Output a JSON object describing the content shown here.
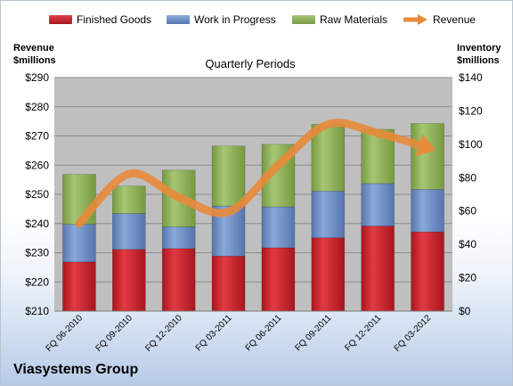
{
  "chart_data": {
    "type": "bar",
    "stacked": true,
    "title": "Quarterly Periods",
    "categories": [
      "FQ 06-2010",
      "FQ 09-2010",
      "FQ 12-2010",
      "FQ 03-2011",
      "FQ 06-2011",
      "FQ 09-2011",
      "FQ 12-2011",
      "FQ 03-2012"
    ],
    "series": [
      {
        "name": "Finished Goods",
        "axis": "right",
        "color": "#c0202a",
        "values": [
          29.5,
          37,
          37.5,
          33,
          38,
          44,
          51,
          47.5
        ]
      },
      {
        "name": "Work in Progress",
        "axis": "right",
        "color": "#6e8fc6",
        "values": [
          22.5,
          21.5,
          13,
          30,
          24.5,
          28,
          25.5,
          25.5
        ]
      },
      {
        "name": "Raw Materials",
        "axis": "right",
        "color": "#8fb15a",
        "values": [
          30,
          16.5,
          34,
          36,
          37.5,
          40,
          32.5,
          39.5
        ]
      },
      {
        "name": "Revenue",
        "type": "line",
        "axis": "left",
        "color": "#e88a3a",
        "values": [
          240,
          257,
          249,
          244,
          260,
          274,
          271,
          266
        ]
      }
    ],
    "ylabel": "Revenue\n$millions",
    "y2label": "Inventory\n$millions",
    "ylim": [
      210,
      290
    ],
    "yticks": [
      "$290",
      "$280",
      "$270",
      "$260",
      "$250",
      "$240",
      "$230",
      "$220",
      "$210"
    ],
    "y2lim": [
      0,
      140
    ],
    "y2ticks": [
      "$140",
      "$120",
      "$100",
      "$80",
      "$60",
      "$40",
      "$20",
      "$0"
    ],
    "legend_position": "top",
    "grid": true
  },
  "legend": {
    "finished": "Finished Goods",
    "wip": "Work in Progress",
    "raw": "Raw Materials",
    "revenue": "Revenue"
  },
  "axes": {
    "left_title_1": "Revenue",
    "left_title_2": "$millions",
    "right_title_1": "Inventory",
    "right_title_2": "$millions"
  },
  "footer": {
    "company": "Viasystems Group"
  },
  "colors": {
    "finished": "#c0202a",
    "wip": "#6e8fc6",
    "raw": "#8fb15a",
    "revenue": "#e88a3a",
    "plot_bg": "#bfbfbf"
  }
}
